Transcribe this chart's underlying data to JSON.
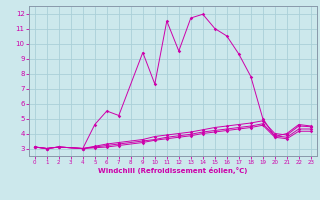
{
  "xlabel": "Windchill (Refroidissement éolien,°C)",
  "bg_color": "#cce8ec",
  "grid_color": "#aad0d8",
  "line_color": "#cc00aa",
  "spine_color": "#8899aa",
  "xlim": [
    -0.5,
    23.5
  ],
  "ylim": [
    2.5,
    12.5
  ],
  "xticks": [
    0,
    1,
    2,
    3,
    4,
    5,
    6,
    7,
    8,
    9,
    10,
    11,
    12,
    13,
    14,
    15,
    16,
    17,
    18,
    19,
    20,
    21,
    22,
    23
  ],
  "yticks": [
    3,
    4,
    5,
    6,
    7,
    8,
    9,
    10,
    11,
    12
  ],
  "lines": [
    {
      "x": [
        0,
        1,
        2,
        4,
        5,
        6,
        7,
        9,
        10,
        11,
        12,
        13,
        14,
        15,
        16,
        17,
        18,
        19,
        20,
        21,
        22,
        23
      ],
      "y": [
        3.1,
        3.0,
        3.1,
        3.0,
        4.6,
        5.5,
        5.2,
        9.4,
        7.3,
        11.5,
        9.5,
        11.7,
        11.95,
        11.0,
        10.5,
        9.3,
        7.8,
        5.0,
        3.8,
        4.0,
        4.6,
        4.5
      ]
    },
    {
      "x": [
        0,
        1,
        2,
        4,
        5,
        6,
        7,
        9,
        10,
        11,
        12,
        13,
        14,
        15,
        16,
        17,
        18,
        19,
        20,
        21,
        22,
        23
      ],
      "y": [
        3.1,
        3.0,
        3.1,
        3.0,
        3.15,
        3.3,
        3.4,
        3.6,
        3.8,
        3.9,
        4.0,
        4.1,
        4.25,
        4.4,
        4.5,
        4.6,
        4.7,
        4.85,
        4.0,
        3.9,
        4.5,
        4.45
      ]
    },
    {
      "x": [
        0,
        1,
        2,
        4,
        5,
        6,
        7,
        9,
        10,
        11,
        12,
        13,
        14,
        15,
        16,
        17,
        18,
        19,
        20,
        21,
        22,
        23
      ],
      "y": [
        3.1,
        3.0,
        3.1,
        3.0,
        3.1,
        3.2,
        3.3,
        3.5,
        3.6,
        3.75,
        3.85,
        3.95,
        4.1,
        4.2,
        4.3,
        4.4,
        4.5,
        4.65,
        3.85,
        3.75,
        4.3,
        4.3
      ]
    },
    {
      "x": [
        0,
        1,
        2,
        4,
        5,
        6,
        7,
        9,
        10,
        11,
        12,
        13,
        14,
        15,
        16,
        17,
        18,
        19,
        20,
        21,
        22,
        23
      ],
      "y": [
        3.1,
        3.0,
        3.1,
        3.0,
        3.05,
        3.1,
        3.2,
        3.4,
        3.55,
        3.65,
        3.75,
        3.85,
        4.0,
        4.1,
        4.2,
        4.3,
        4.4,
        4.55,
        3.75,
        3.65,
        4.15,
        4.15
      ]
    }
  ]
}
